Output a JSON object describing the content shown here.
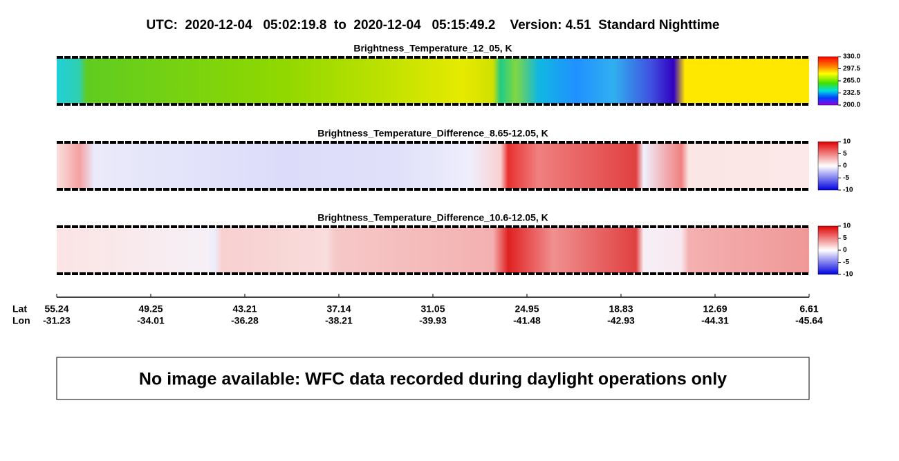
{
  "header": {
    "title": "UTC:  2020-12-04   05:02:19.8  to  2020-12-04   05:15:49.2    Version: 4.51  Standard Nighttime"
  },
  "panels": [
    {
      "title": "Brightness_Temperature_12_05, K",
      "colorbar_ticks": [
        "330.0",
        "297.5",
        "265.0",
        "232.5",
        "200.0"
      ]
    },
    {
      "title": "Brightness_Temperature_Difference_8.65-12.05, K",
      "colorbar_ticks": [
        "10",
        "5",
        "0",
        "-5",
        "-10"
      ]
    },
    {
      "title": "Brightness_Temperature_Difference_10.6-12.05, K",
      "colorbar_ticks": [
        "10",
        "5",
        "0",
        "-5",
        "-10"
      ]
    }
  ],
  "axis": {
    "lat_label": "Lat",
    "lon_label": "Lon",
    "lat": [
      "55.24",
      "49.25",
      "43.21",
      "37.14",
      "31.05",
      "24.95",
      "18.83",
      "12.69",
      "6.61"
    ],
    "lon": [
      "-31.23",
      "-34.01",
      "-36.28",
      "-38.21",
      "-39.93",
      "-41.48",
      "-42.93",
      "-44.31",
      "-45.64"
    ]
  },
  "message": "No image available: WFC data recorded during daylight operations only"
}
